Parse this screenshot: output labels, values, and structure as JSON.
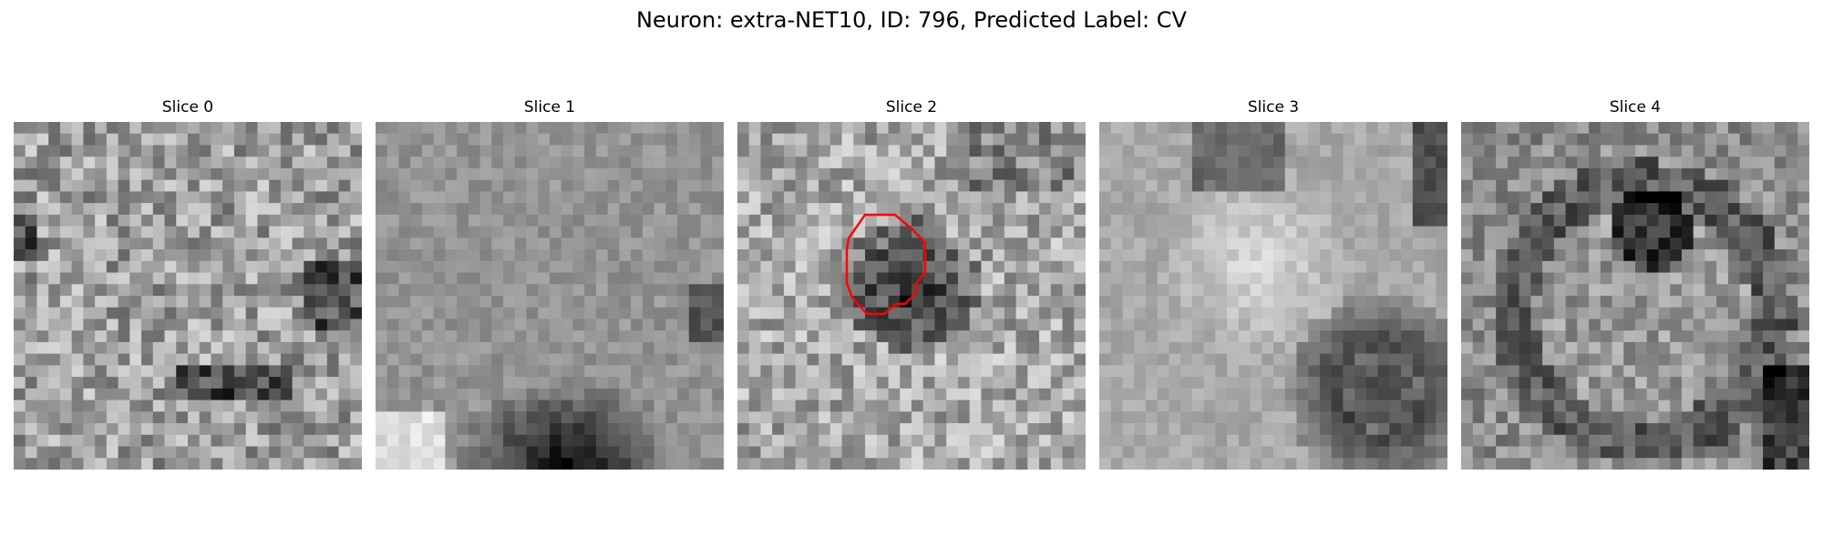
{
  "figure": {
    "title": "Neuron: extra-NET10, ID: 796, Predicted Label: CV"
  },
  "panels": [
    {
      "title": "Slice 0",
      "style": "mottled-gray",
      "seed": 11,
      "has_outline": false
    },
    {
      "title": "Slice 1",
      "style": "smooth-gray-dark-bottom",
      "seed": 23,
      "has_outline": false
    },
    {
      "title": "Slice 2",
      "style": "noisy-gray-dark-center",
      "seed": 37,
      "has_outline": true
    },
    {
      "title": "Slice 3",
      "style": "bright-blob-dark-cell",
      "seed": 41,
      "has_outline": false
    },
    {
      "title": "Slice 4",
      "style": "dark-ring-cell",
      "seed": 53,
      "has_outline": false
    }
  ],
  "colors": {
    "outline": "#ff0000",
    "background": "#ffffff"
  },
  "image": {
    "grid_size": 30,
    "colormap": "gray"
  }
}
